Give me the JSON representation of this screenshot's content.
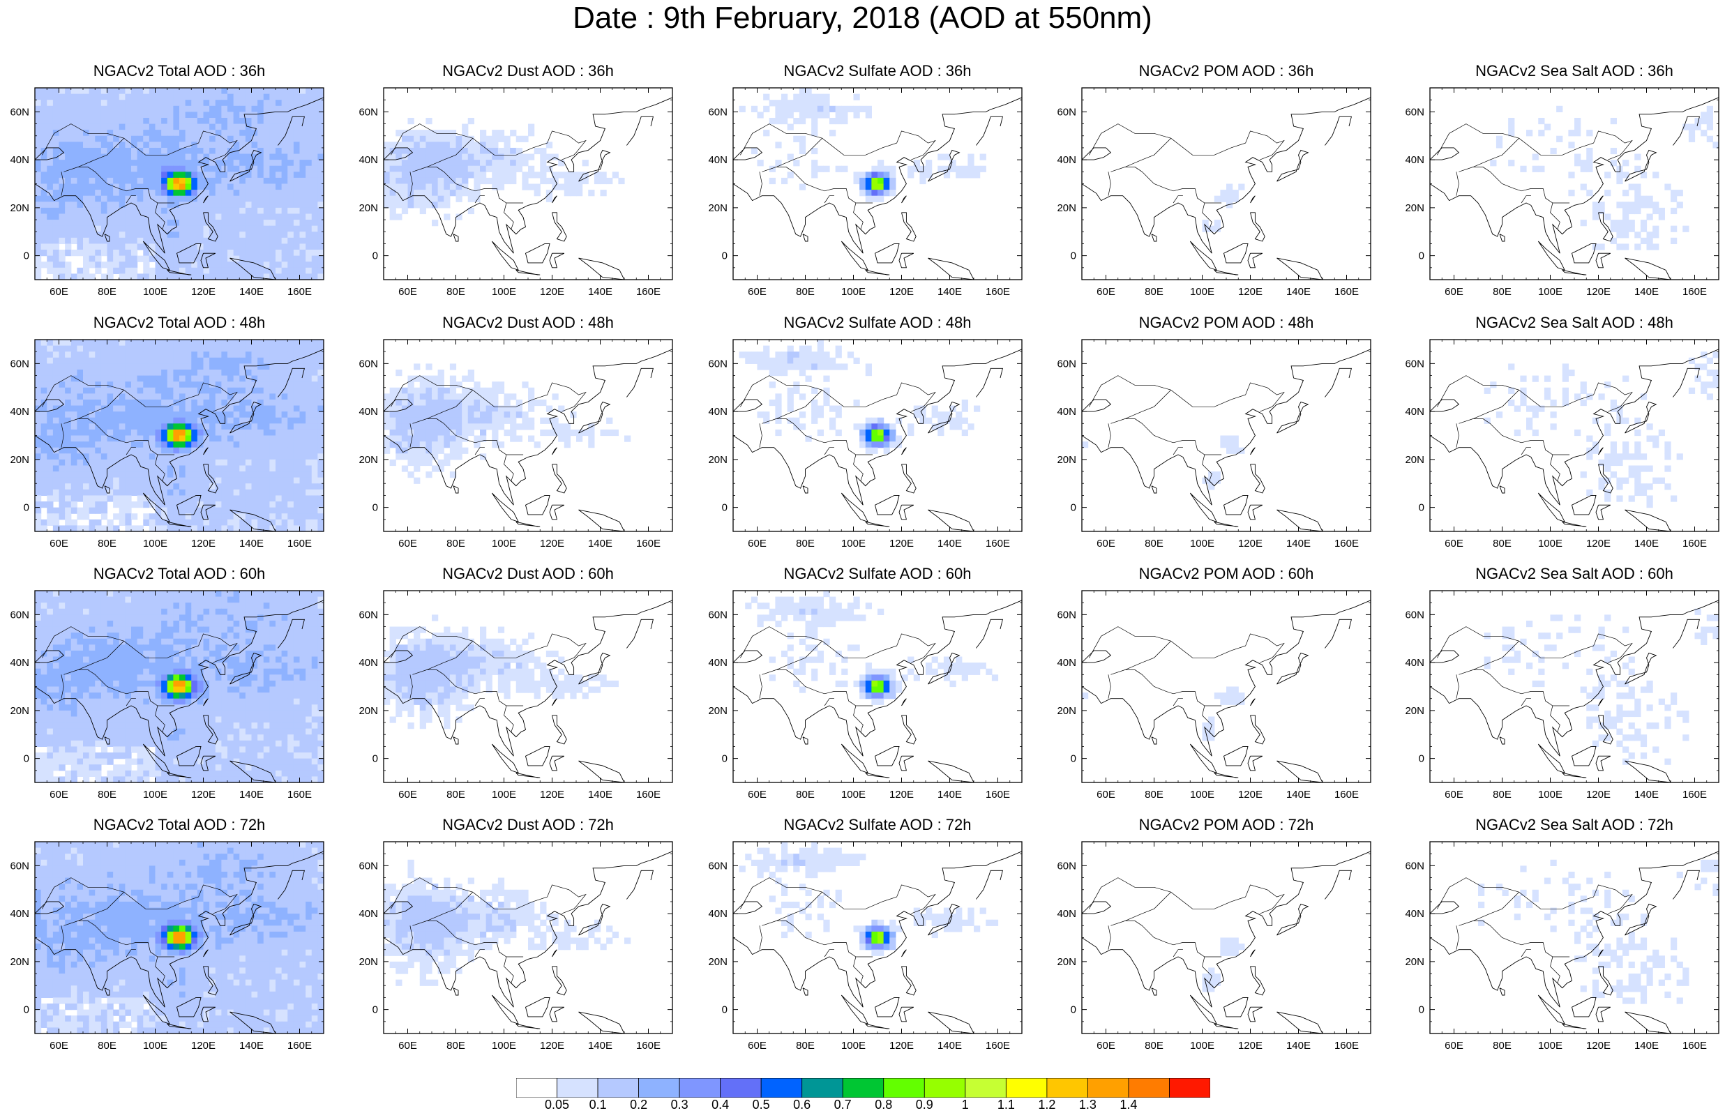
{
  "title": "Date : 9th February, 2018 (AOD at 550nm)",
  "panels": [
    {
      "title": "NGACv2 Total AOD : 36h",
      "species": "total",
      "hour": "36h"
    },
    {
      "title": "NGACv2 Dust AOD : 36h",
      "species": "dust",
      "hour": "36h"
    },
    {
      "title": "NGACv2 Sulfate AOD : 36h",
      "species": "sulfate",
      "hour": "36h"
    },
    {
      "title": "NGACv2 POM AOD : 36h",
      "species": "pom",
      "hour": "36h"
    },
    {
      "title": "NGACv2 Sea Salt AOD : 36h",
      "species": "seasalt",
      "hour": "36h"
    },
    {
      "title": "NGACv2 Total AOD : 48h",
      "species": "total",
      "hour": "48h"
    },
    {
      "title": "NGACv2 Dust AOD : 48h",
      "species": "dust",
      "hour": "48h"
    },
    {
      "title": "NGACv2 Sulfate AOD : 48h",
      "species": "sulfate",
      "hour": "48h"
    },
    {
      "title": "NGACv2 POM AOD : 48h",
      "species": "pom",
      "hour": "48h"
    },
    {
      "title": "NGACv2 Sea Salt AOD : 48h",
      "species": "seasalt",
      "hour": "48h"
    },
    {
      "title": "NGACv2 Total AOD : 60h",
      "species": "total",
      "hour": "60h"
    },
    {
      "title": "NGACv2 Dust AOD : 60h",
      "species": "dust",
      "hour": "60h"
    },
    {
      "title": "NGACv2 Sulfate AOD : 60h",
      "species": "sulfate",
      "hour": "60h"
    },
    {
      "title": "NGACv2 POM AOD : 60h",
      "species": "pom",
      "hour": "60h"
    },
    {
      "title": "NGACv2 Sea Salt AOD : 60h",
      "species": "seasalt",
      "hour": "60h"
    },
    {
      "title": "NGACv2 Total AOD : 72h",
      "species": "total",
      "hour": "72h"
    },
    {
      "title": "NGACv2 Dust AOD : 72h",
      "species": "dust",
      "hour": "72h"
    },
    {
      "title": "NGACv2 Sulfate AOD : 72h",
      "species": "sulfate",
      "hour": "72h"
    },
    {
      "title": "NGACv2 POM AOD : 72h",
      "species": "pom",
      "hour": "72h"
    },
    {
      "title": "NGACv2 Sea Salt  AOD : 72h",
      "species": "seasalt",
      "hour": "72h"
    }
  ],
  "map_extent": {
    "lon_min": 50,
    "lon_max": 170,
    "lat_min": -10,
    "lat_max": 70
  },
  "x_ticks": [
    60,
    80,
    100,
    120,
    140,
    160
  ],
  "x_tick_labels": [
    "60E",
    "80E",
    "100E",
    "120E",
    "140E",
    "160E"
  ],
  "y_ticks": [
    0,
    20,
    40,
    60
  ],
  "y_tick_labels": [
    "0",
    "20N",
    "40N",
    "60N"
  ],
  "colorbar": {
    "labels": [
      "0.05",
      "0.1",
      "0.2",
      "0.3",
      "0.4",
      "0.5",
      "0.6",
      "0.7",
      "0.8",
      "0.9",
      "1",
      "1.1",
      "1.2",
      "1.3",
      "1.4"
    ],
    "colors": [
      "#ffffff",
      "#d6e2ff",
      "#b5c9ff",
      "#8eb2ff",
      "#7f96ff",
      "#6370f8",
      "#0063ff",
      "#009696",
      "#00c633",
      "#63ff00",
      "#96ff00",
      "#c6ff33",
      "#ffff00",
      "#ffc600",
      "#ffa000",
      "#ff7c00",
      "#ff1900"
    ]
  }
}
